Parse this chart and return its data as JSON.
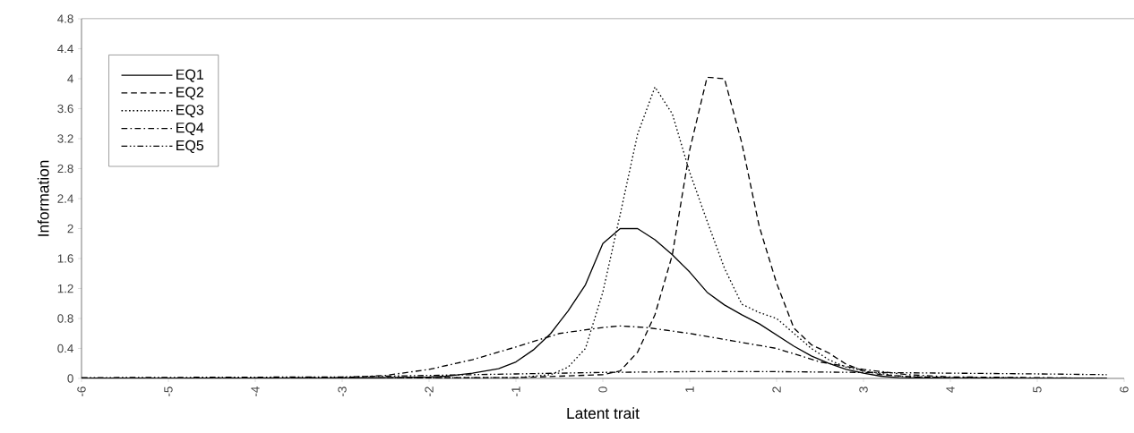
{
  "chart_data": {
    "type": "line",
    "xlabel": "Latent trait",
    "ylabel": "Information",
    "xlim": [
      -6,
      6
    ],
    "xticks": [
      -6,
      -5,
      -4,
      -3,
      -2,
      -1,
      0,
      1,
      2,
      3,
      4,
      5,
      6
    ],
    "ylim": [
      0,
      4.8
    ],
    "yticks": [
      0,
      0.4,
      0.8,
      1.2,
      1.6,
      2,
      2.4,
      2.8,
      3.2,
      3.6,
      4,
      4.4,
      4.8
    ],
    "grid": false,
    "legend": "top left",
    "marker": "none",
    "series": [
      {
        "name": "EQ1",
        "color": "#000000",
        "line_style": "solid",
        "x": [
          -6,
          -3,
          -2.5,
          -2,
          -1.8,
          -1.5,
          -1.2,
          -1,
          -0.8,
          -0.6,
          -0.5,
          -0.4,
          -0.2,
          0,
          0.2,
          0.4,
          0.6,
          0.8,
          1.0,
          1.2,
          1.4,
          1.6,
          1.8,
          2.0,
          2.2,
          2.4,
          2.6,
          2.8,
          3.0,
          3.2,
          3.4,
          4,
          5.8
        ],
        "values": [
          0,
          0,
          0.01,
          0.02,
          0.03,
          0.07,
          0.13,
          0.22,
          0.38,
          0.6,
          0.75,
          0.9,
          1.25,
          1.8,
          2.0,
          2.0,
          1.85,
          1.65,
          1.42,
          1.15,
          0.98,
          0.85,
          0.73,
          0.58,
          0.43,
          0.3,
          0.2,
          0.12,
          0.07,
          0.03,
          0.01,
          0,
          0
        ]
      },
      {
        "name": "EQ2",
        "color": "#000000",
        "line_style": "dashed",
        "x": [
          -6,
          -1,
          0,
          0.2,
          0.4,
          0.6,
          0.8,
          1.0,
          1.2,
          1.4,
          1.6,
          1.8,
          2.0,
          2.2,
          2.4,
          2.6,
          2.8,
          3.0,
          3.2,
          3.6,
          4,
          5.8
        ],
        "values": [
          0,
          0.01,
          0.05,
          0.1,
          0.35,
          0.85,
          1.65,
          3.05,
          4.02,
          4.0,
          3.14,
          2.03,
          1.27,
          0.67,
          0.45,
          0.34,
          0.19,
          0.1,
          0.05,
          0.02,
          0.01,
          0
        ]
      },
      {
        "name": "EQ3",
        "color": "#000000",
        "line_style": "dotted",
        "x": [
          -6,
          -1,
          -0.6,
          -0.4,
          -0.2,
          0,
          0.2,
          0.4,
          0.6,
          0.8,
          1.0,
          1.2,
          1.4,
          1.6,
          1.8,
          2.0,
          2.2,
          2.4,
          2.6,
          2.8,
          3.0,
          3.4,
          4,
          5.8
        ],
        "values": [
          0,
          0.01,
          0.05,
          0.15,
          0.4,
          1.15,
          2.19,
          3.26,
          3.89,
          3.53,
          2.75,
          2.1,
          1.47,
          0.99,
          0.88,
          0.8,
          0.6,
          0.4,
          0.25,
          0.15,
          0.1,
          0.03,
          0.01,
          0
        ]
      },
      {
        "name": "EQ4",
        "color": "#000000",
        "line_style": "dashdot",
        "x": [
          -6,
          -3,
          -2.5,
          -2,
          -1.5,
          -1,
          -0.5,
          0,
          0.2,
          0.5,
          1.0,
          1.5,
          2.0,
          2.5,
          3.0,
          3.5,
          4,
          5,
          5.8
        ],
        "values": [
          0,
          0.01,
          0.04,
          0.12,
          0.25,
          0.42,
          0.6,
          0.68,
          0.7,
          0.68,
          0.6,
          0.5,
          0.4,
          0.22,
          0.12,
          0.05,
          0.02,
          0.01,
          0
        ]
      },
      {
        "name": "EQ5",
        "color": "#000000",
        "line_style": "dashdotdot",
        "x": [
          -6,
          -3,
          -2,
          -1,
          0,
          1,
          2,
          3,
          4,
          5,
          5.8
        ],
        "values": [
          0.01,
          0.02,
          0.04,
          0.06,
          0.08,
          0.09,
          0.09,
          0.08,
          0.07,
          0.06,
          0.05
        ]
      }
    ]
  }
}
